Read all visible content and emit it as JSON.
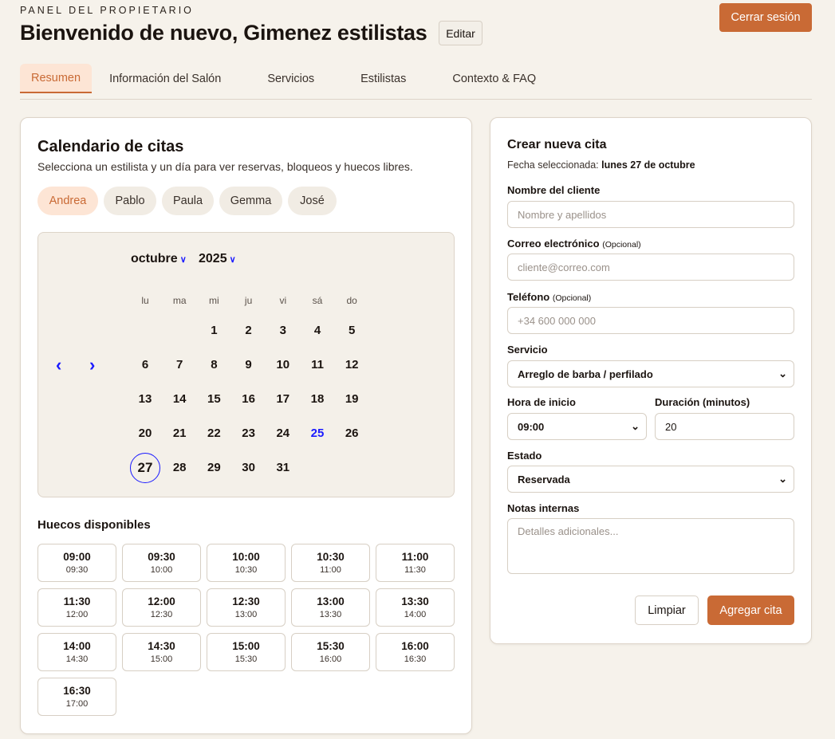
{
  "header": {
    "eyebrow": "PANEL DEL PROPIETARIO",
    "title": "Bienvenido de nuevo, Gimenez estilistas",
    "edit": "Editar",
    "logout": "Cerrar sesión"
  },
  "tabs": [
    "Resumen",
    "Información del Salón",
    "Servicios",
    "Estilistas",
    "Contexto & FAQ"
  ],
  "calendar_card": {
    "title": "Calendario de citas",
    "subtitle": "Selecciona un estilista y un día para ver reservas, bloqueos y huecos libres.",
    "stylists": [
      "Andrea",
      "Pablo",
      "Paula",
      "Gemma",
      "José"
    ],
    "active_stylist": "Andrea",
    "month": "octubre",
    "year": "2025",
    "weekdays": [
      "lu",
      "ma",
      "mi",
      "ju",
      "vi",
      "sá",
      "do"
    ],
    "first_weekday_index": 2,
    "days_in_month": 31,
    "today": 25,
    "selected": 27,
    "slots_title": "Huecos disponibles",
    "slots": [
      [
        "09:00",
        "09:30"
      ],
      [
        "09:30",
        "10:00"
      ],
      [
        "10:00",
        "10:30"
      ],
      [
        "10:30",
        "11:00"
      ],
      [
        "11:00",
        "11:30"
      ],
      [
        "11:30",
        "12:00"
      ],
      [
        "12:00",
        "12:30"
      ],
      [
        "12:30",
        "13:00"
      ],
      [
        "13:00",
        "13:30"
      ],
      [
        "13:30",
        "14:00"
      ],
      [
        "14:00",
        "14:30"
      ],
      [
        "14:30",
        "15:00"
      ],
      [
        "15:00",
        "15:30"
      ],
      [
        "15:30",
        "16:00"
      ],
      [
        "16:00",
        "16:30"
      ],
      [
        "16:30",
        "17:00"
      ]
    ]
  },
  "form": {
    "title": "Crear nueva cita",
    "date_label": "Fecha seleccionada:",
    "date_value": "lunes 27 de octubre",
    "name_label": "Nombre del cliente",
    "name_placeholder": "Nombre y apellidos",
    "email_label": "Correo electrónico",
    "optional": "(Opcional)",
    "email_placeholder": "cliente@correo.com",
    "phone_label": "Teléfono",
    "phone_placeholder": "+34 600 000 000",
    "service_label": "Servicio",
    "service_value": "Arreglo de barba / perfilado",
    "start_label": "Hora de inicio",
    "start_value": "09:00",
    "duration_label": "Duración (minutos)",
    "duration_value": "20",
    "status_label": "Estado",
    "status_value": "Reservada",
    "notes_label": "Notas internas",
    "notes_placeholder": "Detalles adicionales...",
    "clear": "Limpiar",
    "submit": "Agregar cita"
  },
  "colors": {
    "accent": "#c96a35",
    "today": "#1a1aff",
    "selected_ring": "#1a1aff"
  }
}
